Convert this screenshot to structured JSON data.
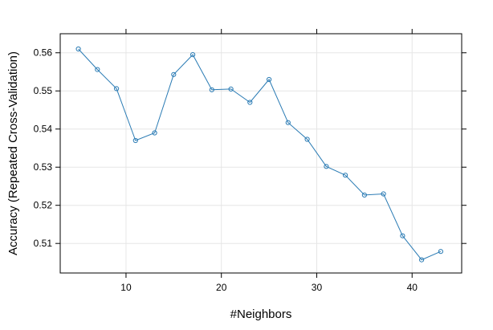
{
  "chart_data": {
    "type": "line",
    "title": "",
    "xlabel": "#Neighbors",
    "ylabel": "Accuracy (Repeated Cross-Validation)",
    "x_ticks": [
      10,
      20,
      30,
      40
    ],
    "x_tick_labels": [
      "10",
      "20",
      "30",
      "40"
    ],
    "y_ticks": [
      0.51,
      0.52,
      0.53,
      0.54,
      0.55,
      0.56
    ],
    "y_tick_labels": [
      "0.51",
      "0.52",
      "0.53",
      "0.54",
      "0.55",
      "0.56"
    ],
    "xlim": [
      3.1,
      45.2
    ],
    "ylim": [
      0.50225,
      0.565
    ],
    "grid": true,
    "marker": "circle",
    "series": [
      {
        "color": "#2a7bb4",
        "x": [
          5,
          7,
          9,
          11,
          13,
          15,
          17,
          19,
          21,
          23,
          25,
          27,
          29,
          31,
          33,
          35,
          37,
          39,
          41,
          43
        ],
        "values": [
          0.561,
          0.5556,
          0.5506,
          0.537,
          0.539,
          0.5543,
          0.5595,
          0.5503,
          0.5505,
          0.547,
          0.553,
          0.5417,
          0.5373,
          0.5302,
          0.5279,
          0.5227,
          0.523,
          0.512,
          0.5057,
          0.5079
        ]
      }
    ]
  }
}
